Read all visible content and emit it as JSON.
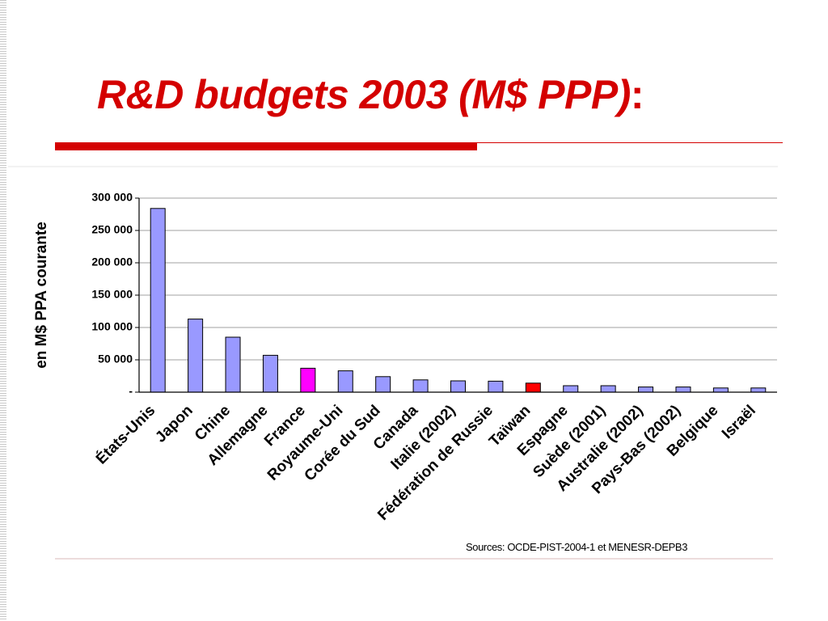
{
  "slide": {
    "title": "R&D budgets 2003 (M$ PPP)",
    "title_suffix": ":",
    "source": "Sources: OCDE-PIST-2004-1 et MENESR-DEPB3"
  },
  "colors": {
    "title": "#d40000",
    "bar_default": "#9999ff",
    "bar_france": "#ff00ff",
    "bar_taiwan": "#ff0000"
  },
  "chart_data": {
    "type": "bar",
    "ylabel": "en M$ PPA courante",
    "xlabel": "",
    "ylim": [
      0,
      300000
    ],
    "yticks": [
      0,
      50000,
      100000,
      150000,
      200000,
      250000,
      300000
    ],
    "ytick_labels": [
      "-",
      "50 000",
      "100 000",
      "150 000",
      "200 000",
      "250 000",
      "300 000"
    ],
    "grid": true,
    "categories": [
      "États-Unis",
      "Japon",
      "Chine",
      "Allemagne",
      "France",
      "Royaume-Uni",
      "Corée du Sud",
      "Canada",
      "Italie (2002)",
      "Fédération de Russie",
      "Taïwan",
      "Espagne",
      "Suède (2001)",
      "Australie (2002)",
      "Pays-Bas (2002)",
      "Belgique",
      "Israël"
    ],
    "values": [
      284000,
      113000,
      85000,
      57000,
      37000,
      33000,
      24000,
      19000,
      17500,
      17000,
      14000,
      10000,
      10000,
      8000,
      8000,
      6500,
      6500
    ],
    "bar_colors": [
      "#9999ff",
      "#9999ff",
      "#9999ff",
      "#9999ff",
      "#ff00ff",
      "#9999ff",
      "#9999ff",
      "#9999ff",
      "#9999ff",
      "#9999ff",
      "#ff0000",
      "#9999ff",
      "#9999ff",
      "#9999ff",
      "#9999ff",
      "#9999ff",
      "#9999ff"
    ]
  }
}
